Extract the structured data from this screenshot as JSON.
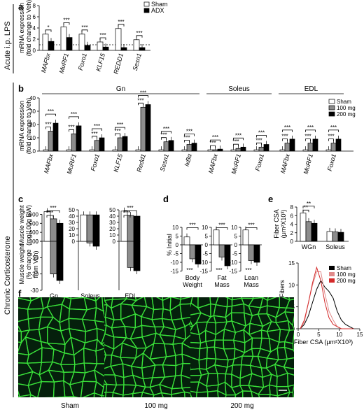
{
  "side_labels": {
    "acute": "Acute i.p. LPS",
    "chronic": "Chronic Corticosterone"
  },
  "panel_letters": [
    "a",
    "b",
    "c",
    "d",
    "e",
    "f"
  ],
  "colors": {
    "sham": "#ffffff",
    "adx": "#000000",
    "mg100": "#8c8c8c",
    "mg200": "#000000",
    "red": "#d42a2a",
    "pink": "#e08a8a",
    "fiber": "#39e039",
    "tissue": "#05200c"
  },
  "chart_data": [
    {
      "panel": "a",
      "type": "bar",
      "ylabel": "mRNA expression\n(fold change to Veh)",
      "ylim": [
        0,
        8
      ],
      "yticks": [
        0,
        2,
        4,
        6,
        8
      ],
      "baseline": 1,
      "categories": [
        "MAFbx",
        "MuRF1",
        "Foxo1",
        "KLF15",
        "REDD1",
        "Sesn1"
      ],
      "series": [
        {
          "name": "Sham",
          "values": [
            2.9,
            4.2,
            2.9,
            1.5,
            3.9,
            1.9
          ]
        },
        {
          "name": "ADX",
          "values": [
            1.6,
            2.3,
            0.9,
            0.6,
            0.5,
            0.5
          ]
        }
      ],
      "significance": [
        "*",
        "***",
        "***",
        "***",
        "***",
        "***"
      ],
      "legend": "top-right"
    },
    {
      "panel": "b",
      "type": "bar",
      "ylabel": "mRNA expression\n(fold change to Veh)",
      "ylim": [
        0,
        40
      ],
      "yticks": [
        0,
        10,
        20,
        30,
        40
      ],
      "groups": [
        {
          "name": "Gn",
          "categories": [
            "MAFbx",
            "MuRF1",
            "Foxo1",
            "KLF15",
            "Redd1",
            "Sesn1",
            "IκBα"
          ]
        },
        {
          "name": "Soleus",
          "categories": [
            "MAFbx",
            "MuRF1",
            "Foxo1"
          ]
        },
        {
          "name": "EDL",
          "categories": [
            "MAFbx",
            "MuRF1",
            "Foxo1"
          ]
        }
      ],
      "series": [
        {
          "name": "Sham",
          "values": [
            1,
            1,
            1,
            1,
            1,
            1,
            1,
            1,
            1,
            1,
            1,
            1,
            1
          ]
        },
        {
          "name": "100 mg",
          "values": [
            15,
            13,
            8,
            10,
            33,
            7,
            5,
            1,
            2,
            3,
            6,
            6,
            6
          ]
        },
        {
          "name": "200 mg",
          "values": [
            21,
            19,
            10,
            11,
            35,
            8,
            6,
            1.5,
            3,
            5,
            9,
            9,
            9
          ]
        }
      ],
      "legend": "top-right"
    },
    {
      "panel": "c",
      "type": "bar",
      "ylabel_top": "Muscle weight\n(mg/100g BW)",
      "ylabel_bottom": "Muscle weight\n(% change\nfrom Veh)",
      "yticks_top": [
        300,
        400,
        500,
        600
      ],
      "yticks_bottom": [
        -30,
        -20,
        -10,
        0
      ],
      "yticks_soleus": [
        0,
        10,
        20,
        30,
        40,
        50
      ],
      "yticks_edl": [
        0,
        10,
        20,
        30,
        40,
        50
      ],
      "categories": [
        "Gn",
        "Soleus",
        "EDL"
      ],
      "weight": {
        "Sham": [
          630,
          42,
          48
        ],
        "100 mg": [
          550,
          42,
          41
        ],
        "200 mg": [
          500,
          42,
          40
        ]
      },
      "pct_change": {
        "100 mg": [
          -20,
          -1,
          -16
        ],
        "200 mg": [
          -24,
          -3,
          -18
        ]
      }
    },
    {
      "panel": "d",
      "type": "bar",
      "ylabel": "% Initial",
      "ylim": [
        -15,
        10
      ],
      "yticks": [
        -15,
        -10,
        -5,
        0,
        5,
        10
      ],
      "categories": [
        "Body\nWeight",
        "Fat\nMass",
        "Lean\nMass"
      ],
      "series": [
        {
          "name": "Sham",
          "values": [
            4.5,
            8.5,
            8.5
          ]
        },
        {
          "name": "100 mg",
          "values": [
            -8,
            -7,
            -9
          ]
        },
        {
          "name": "200 mg",
          "values": [
            -11,
            -12,
            -10
          ]
        }
      ]
    },
    {
      "panel": "e-top",
      "type": "bar",
      "ylabel": "Fiber CSA\n(μm²X10³)",
      "ylim": [
        0,
        8
      ],
      "yticks": [
        0,
        2,
        4,
        6,
        8
      ],
      "categories": [
        "WGn",
        "Soleus"
      ],
      "series": [
        {
          "name": "Sham",
          "values": [
            6.6,
            2.3
          ]
        },
        {
          "name": "100 mg",
          "values": [
            4.6,
            2.2
          ]
        },
        {
          "name": "200 mg",
          "values": [
            4.2,
            2.1
          ]
        }
      ]
    },
    {
      "panel": "e-bottom",
      "type": "line",
      "ylabel": "% of Fibers",
      "xlabel": "Fiber CSA (μm²X10³)",
      "xlim": [
        0,
        15
      ],
      "ylim": [
        0,
        15
      ],
      "xticks": [
        0,
        5,
        10,
        15
      ],
      "yticks": [
        0,
        5,
        10,
        15
      ],
      "series": [
        {
          "name": "Sham",
          "x": [
            0.5,
            1.5,
            2.5,
            3.5,
            4.5,
            5.5,
            6.5,
            7.5,
            8.5,
            9.5,
            10.5,
            11.5,
            12.5,
            13.5
          ],
          "values": [
            0,
            1,
            3,
            6,
            9,
            11,
            9.5,
            8.5,
            7,
            4,
            2,
            1,
            0.5,
            0
          ]
        },
        {
          "name": "100 mg",
          "x": [
            0.5,
            1.5,
            2.5,
            3.5,
            4.5,
            5.5,
            6.5,
            7.5,
            8.5,
            9.5,
            10.5,
            11.5,
            12.5,
            13.5
          ],
          "values": [
            0,
            1.5,
            6,
            10,
            13,
            13,
            8,
            4,
            2,
            0.5,
            0,
            0,
            0,
            0
          ]
        },
        {
          "name": "200 mg",
          "x": [
            0.5,
            1.5,
            2.5,
            3.5,
            4.5,
            5.5,
            6.5,
            7.5,
            8.5,
            9.5,
            10.5,
            11.5,
            12.5,
            13.5
          ],
          "values": [
            0,
            2,
            6,
            10.5,
            14,
            11,
            6,
            2.5,
            1,
            0.5,
            0,
            0,
            0,
            0
          ]
        }
      ],
      "legend": "top-right"
    }
  ],
  "micrographs": [
    {
      "label": "Sham"
    },
    {
      "label": "100 mg"
    },
    {
      "label": "200 mg"
    }
  ]
}
